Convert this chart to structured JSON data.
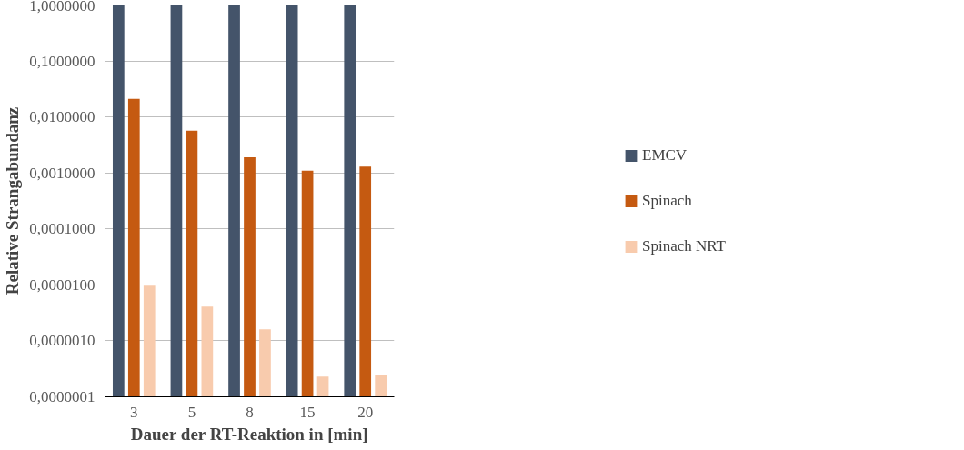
{
  "chart_data": {
    "type": "bar",
    "xlabel": "Dauer der RT-Reaktion in [min]",
    "ylabel": "Relative Strangabundanz",
    "categories": [
      "3",
      "5",
      "8",
      "15",
      "20"
    ],
    "series": [
      {
        "name": "EMCV",
        "color": "#44546a",
        "values": [
          1,
          1,
          1,
          1,
          1
        ]
      },
      {
        "name": "Spinach",
        "color": "#c55a11",
        "values": [
          0.021,
          0.0057,
          0.0019,
          0.0011,
          0.0013
        ]
      },
      {
        "name": "Spinach NRT",
        "color": "#f8cbad",
        "values": [
          9.7e-06,
          4.1e-06,
          1.6e-06,
          2.3e-07,
          2.4e-07
        ]
      }
    ],
    "log": true,
    "ylim": [
      1e-07,
      1
    ],
    "yticks": [
      {
        "value": 1e-07,
        "label": "0,0000001"
      },
      {
        "value": 1e-06,
        "label": "0,0000010"
      },
      {
        "value": 1e-05,
        "label": "0,0000100"
      },
      {
        "value": 0.0001,
        "label": "0,0001000"
      },
      {
        "value": 0.001,
        "label": "0,0010000"
      },
      {
        "value": 0.01,
        "label": "0,0100000"
      },
      {
        "value": 0.1,
        "label": "0,1000000"
      },
      {
        "value": 1,
        "label": "1,0000000"
      }
    ],
    "grid": "y",
    "legend": "right"
  }
}
